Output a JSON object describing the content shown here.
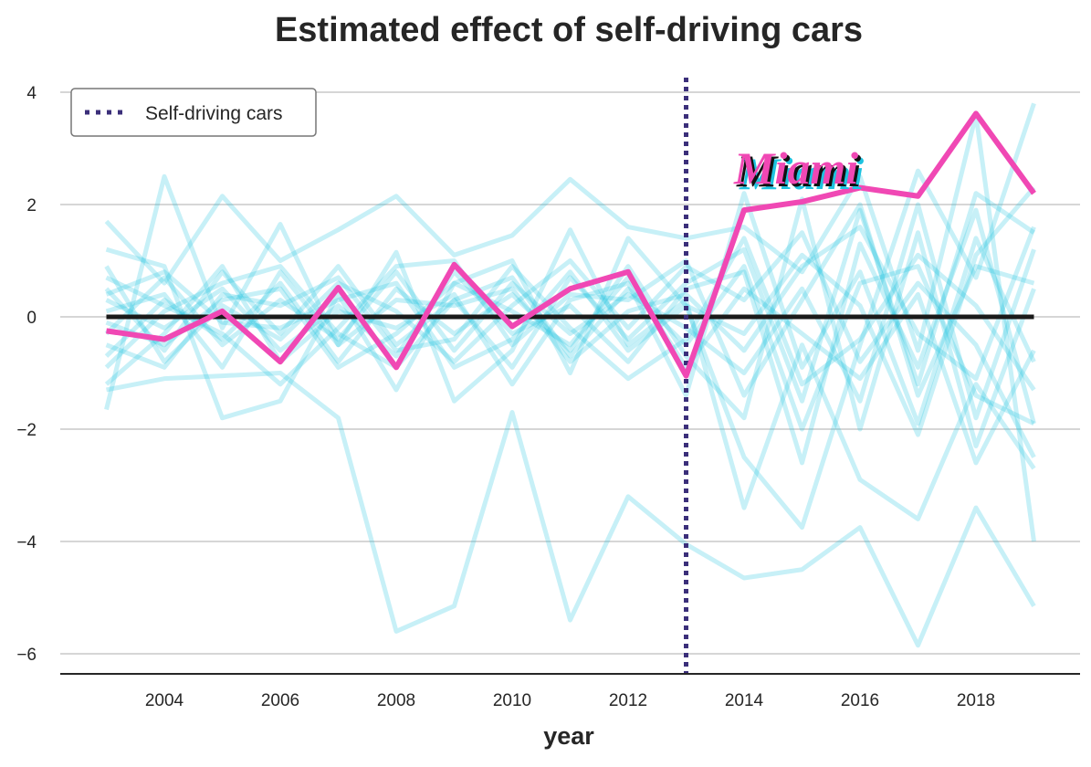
{
  "chart_data": {
    "type": "line",
    "title": "Estimated effect of self-driving cars",
    "xlabel": "year",
    "ylabel": "",
    "xlim": [
      2002,
      2020
    ],
    "ylim": [
      -6.35,
      4.3
    ],
    "x_ticks": [
      2004,
      2006,
      2008,
      2010,
      2012,
      2014,
      2016,
      2018
    ],
    "y_ticks": [
      4,
      2,
      0,
      -2,
      -4,
      -6
    ],
    "grid": "horizontal",
    "legend": {
      "position": "top-left",
      "entries": [
        "Self-driving cars"
      ]
    },
    "treatment_year": 2013,
    "annotation": "Miami",
    "x": [
      2003,
      2004,
      2005,
      2006,
      2007,
      2008,
      2009,
      2010,
      2011,
      2012,
      2013,
      2014,
      2015,
      2016,
      2017,
      2018,
      2019
    ],
    "highlight_series": {
      "name": "Miami",
      "color": "#f048b4",
      "values": [
        -0.25,
        -0.4,
        0.1,
        -0.8,
        0.52,
        -0.9,
        0.93,
        -0.17,
        0.5,
        0.8,
        -1.05,
        1.9,
        2.05,
        2.3,
        2.15,
        3.62,
        2.2
      ]
    },
    "zero_series": {
      "name": "zero",
      "color": "#1a1a1a",
      "values": [
        0,
        0,
        0,
        0,
        0,
        0,
        0,
        0,
        0,
        0,
        0,
        0,
        0,
        0,
        0,
        0,
        0
      ]
    },
    "placebo_color": "#1ec3e0",
    "placebo_series": [
      {
        "name": "placebo-1",
        "values": [
          -1.3,
          -1.1,
          -1.05,
          -1.0,
          -1.8,
          -5.6,
          -5.15,
          -1.7,
          -5.4,
          -3.2,
          -4.05,
          -4.65,
          -4.5,
          -3.75,
          -5.85,
          -3.4,
          -5.15
        ]
      },
      {
        "name": "placebo-2",
        "values": [
          1.7,
          0.6,
          2.15,
          1.0,
          1.55,
          2.15,
          1.1,
          1.45,
          2.45,
          1.6,
          1.4,
          1.6,
          0.8,
          2.5,
          -0.6,
          3.6,
          -4.0
        ]
      },
      {
        "name": "placebo-3",
        "values": [
          -1.65,
          2.5,
          -0.2,
          1.65,
          -0.5,
          1.15,
          -1.5,
          -0.6,
          1.55,
          -0.5,
          0.3,
          -3.4,
          -0.5,
          -2.9,
          -3.6,
          -1.2,
          -2.7
        ]
      },
      {
        "name": "placebo-4",
        "values": [
          1.2,
          0.9,
          -1.8,
          -1.5,
          0.4,
          -1.3,
          0.6,
          1.0,
          -1.0,
          1.4,
          0.2,
          -2.5,
          -3.75,
          -0.5,
          2.6,
          0.7,
          3.8
        ]
      },
      {
        "name": "placebo-5",
        "values": [
          0.5,
          -0.6,
          0.8,
          -0.3,
          0.9,
          -0.5,
          0.3,
          -0.9,
          0.7,
          -0.4,
          0.6,
          1.2,
          -1.5,
          1.9,
          -1.2,
          2.2,
          1.5
        ]
      },
      {
        "name": "placebo-6",
        "values": [
          -0.7,
          0.3,
          -0.4,
          0.6,
          -0.8,
          0.5,
          -0.3,
          0.4,
          -0.6,
          0.9,
          -0.7,
          -1.8,
          2.1,
          -2.0,
          1.5,
          -2.3,
          0.5
        ]
      },
      {
        "name": "placebo-7",
        "values": [
          0.3,
          -0.2,
          0.5,
          -0.6,
          0.2,
          -0.7,
          0.8,
          -0.3,
          0.2,
          -0.8,
          0.5,
          0.8,
          -2.6,
          1.3,
          -0.9,
          1.9,
          -1.9
        ]
      },
      {
        "name": "placebo-8",
        "values": [
          -0.3,
          0.7,
          -0.5,
          0.3,
          -0.4,
          0.8,
          -0.6,
          0.6,
          -0.3,
          0.4,
          -0.2,
          -1.0,
          0.5,
          -1.5,
          2.0,
          -1.8,
          1.2
        ]
      },
      {
        "name": "placebo-9",
        "values": [
          0.9,
          -0.8,
          0.2,
          -0.4,
          0.6,
          0.1,
          -0.8,
          0.2,
          1.0,
          -0.2,
          0.9,
          0.3,
          1.5,
          -0.8,
          0.6,
          -0.5,
          -2.5
        ]
      },
      {
        "name": "placebo-10",
        "values": [
          -1.2,
          -0.3,
          0.9,
          -0.8,
          0.1,
          -0.2,
          0.4,
          -1.2,
          0.3,
          0.6,
          -1.4,
          2.2,
          -0.9,
          0.8,
          -1.9,
          1.4,
          -0.8
        ]
      },
      {
        "name": "placebo-11",
        "values": [
          0.1,
          0.4,
          -0.9,
          0.8,
          -0.5,
          0.3,
          0.2,
          0.5,
          -0.8,
          0.1,
          0.4,
          -0.6,
          0.9,
          1.6,
          -0.3,
          -1.1,
          1.6
        ]
      },
      {
        "name": "placebo-12",
        "values": [
          -0.5,
          -0.9,
          0.4,
          0.2,
          0.7,
          -0.6,
          -0.4,
          0.9,
          -0.2,
          -1.1,
          -0.4,
          1.4,
          -1.2,
          -0.4,
          1.1,
          0.2,
          -1.3
        ]
      },
      {
        "name": "placebo-13",
        "values": [
          0.7,
          0.2,
          -0.3,
          -1.2,
          -0.2,
          0.9,
          1.0,
          -0.5,
          0.4,
          0.3,
          1.0,
          -1.4,
          0.3,
          2.0,
          -1.4,
          0.9,
          0.6
        ]
      },
      {
        "name": "placebo-14",
        "values": [
          -0.1,
          -0.5,
          0.3,
          0.5,
          -0.9,
          -0.3,
          0.6,
          0.1,
          -0.5,
          0.7,
          -0.9,
          0.5,
          -0.3,
          -1.1,
          0.4,
          -2.6,
          -0.6
        ]
      },
      {
        "name": "placebo-15",
        "values": [
          0.4,
          0.8,
          -0.1,
          -0.2,
          0.3,
          0.6,
          -0.9,
          -0.4,
          0.8,
          -0.6,
          0.2,
          -0.3,
          1.1,
          0.2,
          -2.1,
          1.1,
          2.3
        ]
      },
      {
        "name": "placebo-16",
        "values": [
          -0.9,
          0.1,
          0.6,
          0.9,
          -0.3,
          -0.9,
          0.3,
          0.7,
          -0.7,
          0.5,
          -0.5,
          0.9,
          -2.0,
          0.6,
          0.9,
          -1.4,
          -1.9
        ]
      }
    ],
    "treatment_line_color": "#3b2f7a"
  }
}
